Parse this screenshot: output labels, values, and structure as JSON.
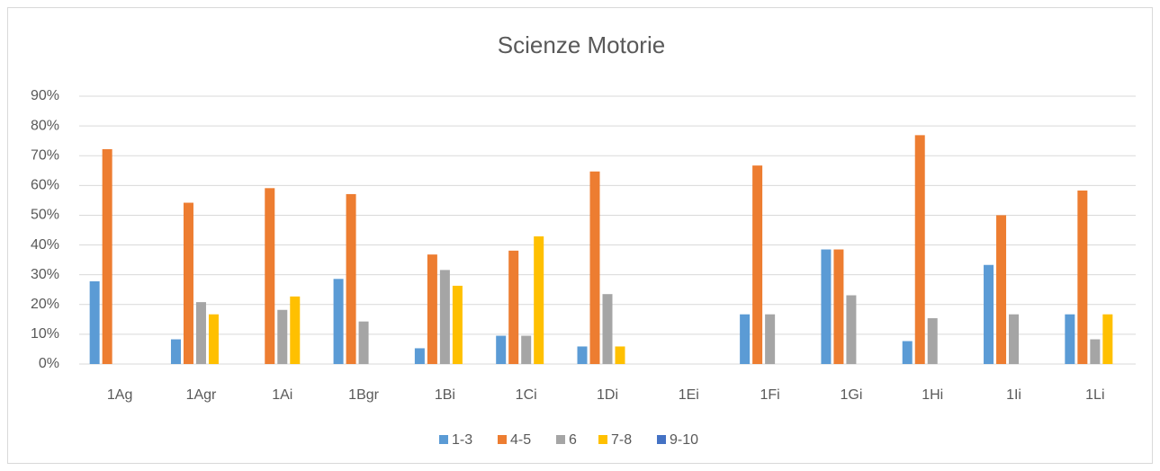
{
  "chart_data": {
    "type": "bar",
    "title": "Scienze Motorie",
    "categories": [
      "1Ag",
      "1Agr",
      "1Ai",
      "1Bgr",
      "1Bi",
      "1Ci",
      "1Di",
      "1Ei",
      "1Fi",
      "1Gi",
      "1Hi",
      "1Ii",
      "1Li"
    ],
    "series": [
      {
        "name": "1-3",
        "color": "#5b9bd5",
        "values": [
          27.8,
          8.3,
          0,
          28.6,
          5.3,
          9.5,
          5.9,
          0,
          16.7,
          38.5,
          7.7,
          33.3,
          16.7
        ]
      },
      {
        "name": "4-5",
        "color": "#ed7d31",
        "values": [
          72.2,
          54.2,
          59.1,
          57.1,
          36.8,
          38.1,
          64.7,
          0,
          66.7,
          38.5,
          76.9,
          50,
          58.3
        ]
      },
      {
        "name": "6",
        "color": "#a5a5a5",
        "values": [
          0,
          20.8,
          18.2,
          14.3,
          31.6,
          9.5,
          23.5,
          0,
          16.7,
          23.1,
          15.4,
          16.7,
          8.3
        ]
      },
      {
        "name": "7-8",
        "color": "#ffc000",
        "values": [
          0,
          16.7,
          22.7,
          0,
          26.3,
          42.9,
          5.9,
          0,
          0,
          0,
          0,
          0,
          16.7
        ]
      },
      {
        "name": "9-10",
        "color": "#4472c4",
        "values": [
          0,
          0,
          0,
          0,
          0,
          0,
          0,
          0,
          0,
          0,
          0,
          0,
          0
        ]
      }
    ],
    "ylim": [
      0,
      90
    ],
    "yticks": [
      {
        "value": 0,
        "label": "0%"
      },
      {
        "value": 10,
        "label": "10%"
      },
      {
        "value": 20,
        "label": "20%"
      },
      {
        "value": 30,
        "label": "30%"
      },
      {
        "value": 40,
        "label": "40%"
      },
      {
        "value": 50,
        "label": "50%"
      },
      {
        "value": 60,
        "label": "60%"
      },
      {
        "value": 70,
        "label": "70%"
      },
      {
        "value": 80,
        "label": "80%"
      },
      {
        "value": 90,
        "label": "90%"
      }
    ],
    "grid": true,
    "legend": "bottom"
  }
}
